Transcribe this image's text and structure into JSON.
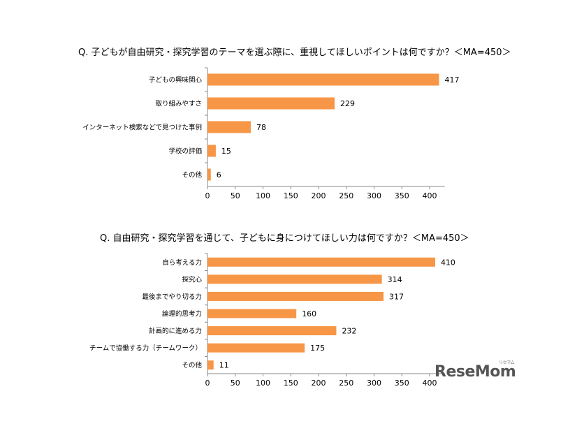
{
  "watermark": {
    "text": "ReseMom",
    "sub": "リセマム"
  },
  "colors": {
    "bar": "#F79646",
    "axis": "#888888"
  },
  "chart_data": [
    {
      "type": "bar",
      "orientation": "horizontal",
      "title": "Q. 子どもが自由研究・探究学習のテーマを選ぶ際に、重視してほしいポイントは何ですか？＜MA=450＞",
      "categories": [
        "子どもの興味関心",
        "取り組みやすさ",
        "インターネット検索などで見つけた事例",
        "学校の評価",
        "その他"
      ],
      "values": [
        417,
        229,
        78,
        15,
        6
      ],
      "xlim": [
        0,
        450
      ],
      "xticks": [
        0,
        50,
        100,
        150,
        200,
        250,
        300,
        350,
        400
      ],
      "grid": false
    },
    {
      "type": "bar",
      "orientation": "horizontal",
      "title": "Q. 自由研究・探究学習を通じて、子どもに身につけてほしい力は何ですか？＜MA=450＞",
      "categories": [
        "自ら考える力",
        "探究心",
        "最後までやり切る力",
        "論理的思考力",
        "計画的に進める力",
        "チームで協働する力（チームワーク）",
        "その他"
      ],
      "values": [
        410,
        314,
        317,
        160,
        232,
        175,
        11
      ],
      "xlim": [
        0,
        450
      ],
      "xticks": [
        0,
        50,
        100,
        150,
        200,
        250,
        300,
        350,
        400
      ],
      "grid": false
    }
  ]
}
